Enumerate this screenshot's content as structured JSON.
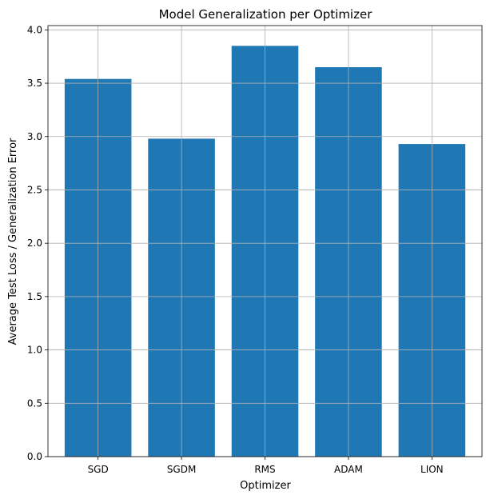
{
  "chart_data": {
    "type": "bar",
    "title": "Model Generalization per Optimizer",
    "xlabel": "Optimizer",
    "ylabel": "Average Test Loss / Generalization Error",
    "categories": [
      "SGD",
      "SGDM",
      "RMS",
      "ADAM",
      "LION"
    ],
    "values": [
      3.54,
      2.98,
      3.85,
      3.65,
      2.93
    ],
    "ylim": [
      0,
      4.04
    ],
    "yticks": [
      "0.0",
      "0.5",
      "1.0",
      "1.5",
      "2.0",
      "2.5",
      "3.0",
      "3.5",
      "4.0"
    ],
    "grid": true,
    "bar_color": "#1f77b4"
  }
}
